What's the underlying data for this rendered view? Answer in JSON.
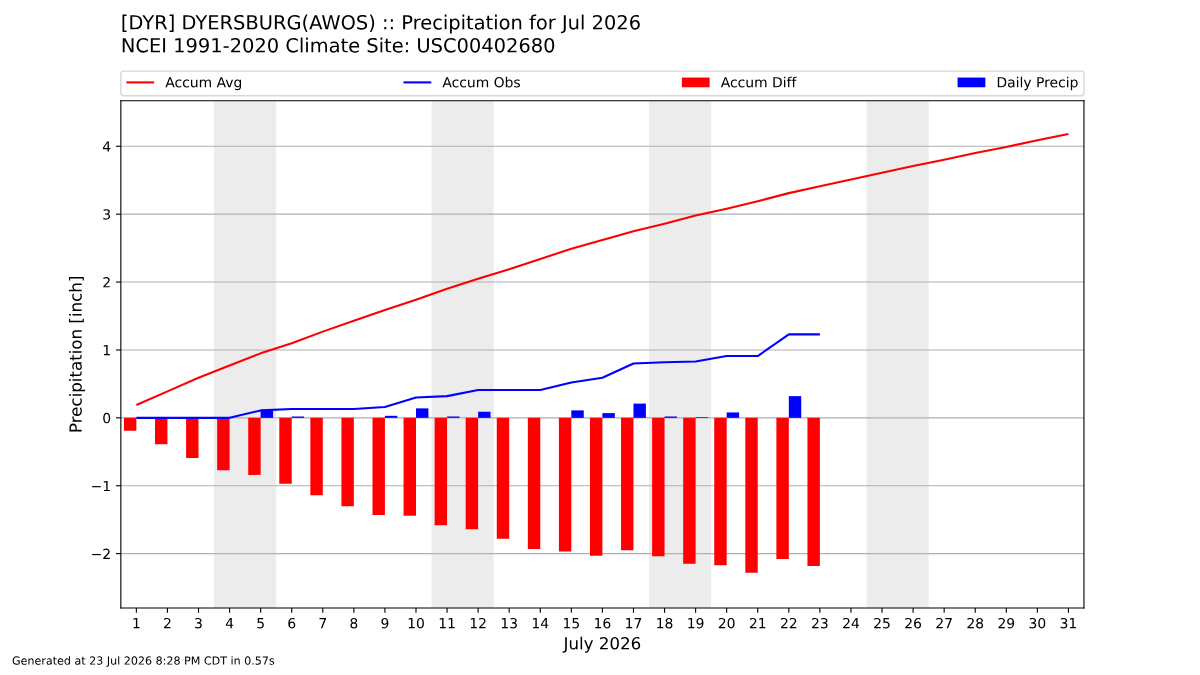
{
  "chart_data": {
    "type": "bar",
    "title": "[DYR] DYERSBURG(AWOS) :: Precipitation for Jul 2026",
    "subtitle": "NCEI 1991-2020 Climate Site: USC00402680",
    "xlabel": "July 2026",
    "ylabel": "Precipitation [inch]",
    "annotations": [
      "Generated at 23 Jul 2026 8:28 PM CDT in 0.57s"
    ],
    "x": [
      1,
      2,
      3,
      4,
      5,
      6,
      7,
      8,
      9,
      10,
      11,
      12,
      13,
      14,
      15,
      16,
      17,
      18,
      19,
      20,
      21,
      22,
      23,
      24,
      25,
      26,
      27,
      28,
      29,
      30,
      31
    ],
    "series": [
      {
        "name": "Accum Avg",
        "type": "line",
        "color": "#ff0000",
        "values": [
          0.19,
          0.39,
          0.59,
          0.77,
          0.95,
          1.1,
          1.27,
          1.43,
          1.59,
          1.74,
          1.9,
          2.05,
          2.19,
          2.34,
          2.49,
          2.62,
          2.75,
          2.86,
          2.98,
          3.08,
          3.19,
          3.31,
          3.41,
          3.51,
          3.61,
          3.71,
          3.8,
          3.9,
          3.99,
          4.09,
          4.18
        ]
      },
      {
        "name": "Accum Obs",
        "type": "line",
        "color": "#0000ff",
        "x": [
          1,
          2,
          3,
          4,
          5,
          6,
          7,
          8,
          9,
          10,
          11,
          12,
          13,
          14,
          15,
          16,
          17,
          18,
          19,
          20,
          21,
          22,
          23
        ],
        "values": [
          0,
          0,
          0,
          0,
          0.11,
          0.13,
          0.13,
          0.13,
          0.16,
          0.3,
          0.32,
          0.41,
          0.41,
          0.41,
          0.52,
          0.59,
          0.8,
          0.82,
          0.83,
          0.91,
          0.91,
          1.23,
          1.23
        ]
      },
      {
        "name": "Accum Diff",
        "color": "#ff0000",
        "x": [
          1,
          2,
          3,
          4,
          5,
          6,
          7,
          8,
          9,
          10,
          11,
          12,
          13,
          14,
          15,
          16,
          17,
          18,
          19,
          20,
          21,
          22,
          23
        ],
        "values": [
          -0.19,
          -0.39,
          -0.59,
          -0.77,
          -0.84,
          -0.97,
          -1.14,
          -1.3,
          -1.43,
          -1.44,
          -1.58,
          -1.64,
          -1.78,
          -1.93,
          -1.97,
          -2.03,
          -1.95,
          -2.04,
          -2.15,
          -2.17,
          -2.28,
          -2.08,
          -2.18
        ]
      },
      {
        "name": "Daily Precip",
        "color": "#0000ff",
        "x": [
          1,
          2,
          3,
          4,
          5,
          6,
          7,
          8,
          9,
          10,
          11,
          12,
          13,
          14,
          15,
          16,
          17,
          18,
          19,
          20,
          21,
          22,
          23
        ],
        "values": [
          0,
          0,
          0,
          0,
          0.11,
          0.02,
          0,
          0,
          0.03,
          0.14,
          0.02,
          0.09,
          0,
          0,
          0.11,
          0.07,
          0.21,
          0.02,
          0.01,
          0.08,
          0,
          0.32,
          0
        ]
      }
    ],
    "xlim": [
      0.5,
      31.5
    ],
    "xticks": [
      1,
      2,
      3,
      4,
      5,
      6,
      7,
      8,
      9,
      10,
      11,
      12,
      13,
      14,
      15,
      16,
      17,
      18,
      19,
      20,
      21,
      22,
      23,
      24,
      25,
      26,
      27,
      28,
      29,
      30,
      31
    ],
    "ylim": [
      -2.8,
      4.67
    ],
    "yticks": [
      {
        "value": -2,
        "label": "−2"
      },
      {
        "value": -1,
        "label": "−1"
      },
      0,
      1,
      2,
      3,
      4
    ],
    "bands": [
      {
        "axis": "x",
        "from": 3.5,
        "to": 5.5,
        "color": "#ececec"
      },
      {
        "axis": "x",
        "from": 10.5,
        "to": 12.5,
        "color": "#ececec"
      },
      {
        "axis": "x",
        "from": 17.5,
        "to": 19.5,
        "color": "#ececec"
      },
      {
        "axis": "x",
        "from": 24.5,
        "to": 26.5,
        "color": "#ececec"
      }
    ],
    "grid": "y",
    "legend": "top"
  }
}
